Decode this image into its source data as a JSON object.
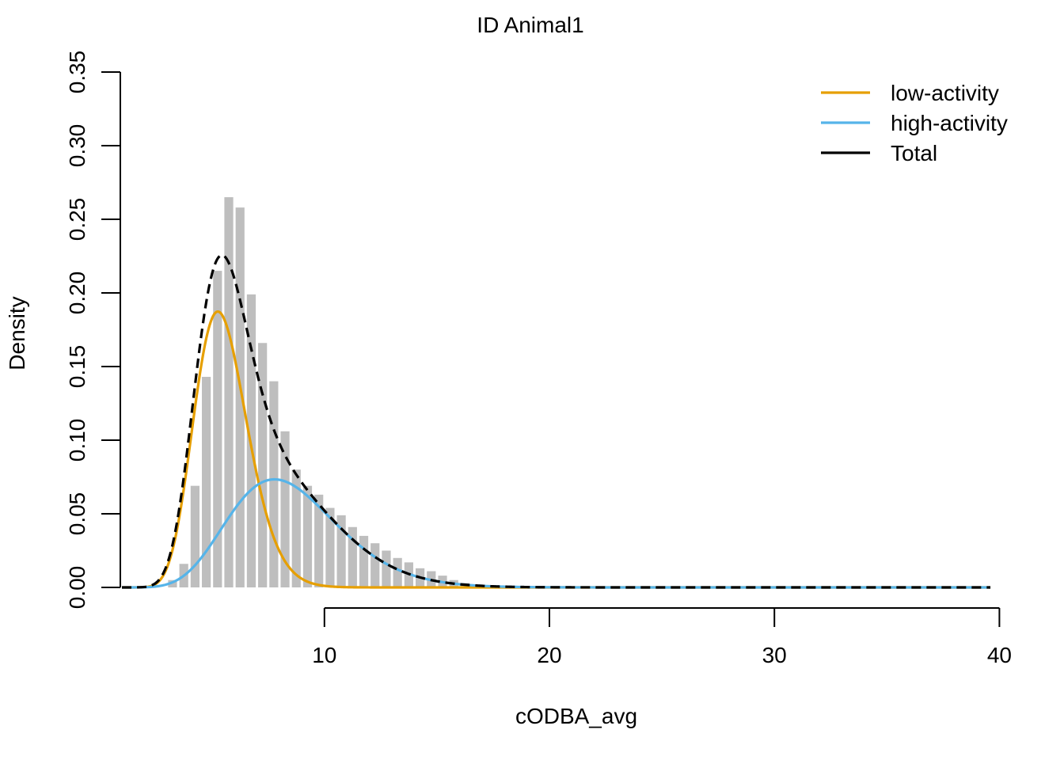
{
  "chart_data": {
    "type": "histogram",
    "title": "ID Animal1",
    "xlabel": "cODBA_avg",
    "ylabel": "Density",
    "xlim": [
      1,
      40
    ],
    "ylim": [
      0,
      0.35
    ],
    "x_ticks": [
      10,
      20,
      30,
      40
    ],
    "y_ticks": [
      0.0,
      0.05,
      0.1,
      0.15,
      0.2,
      0.25,
      0.3,
      0.35
    ],
    "y_tick_labels": [
      "0.00",
      "0.05",
      "0.10",
      "0.15",
      "0.20",
      "0.25",
      "0.30",
      "0.35"
    ],
    "histogram": {
      "bin_width": 0.5,
      "bin_start": 3.0,
      "color": "#bebebe",
      "densities": [
        0.005,
        0.016,
        0.069,
        0.143,
        0.215,
        0.265,
        0.258,
        0.199,
        0.166,
        0.14,
        0.106,
        0.08,
        0.069,
        0.063,
        0.054,
        0.049,
        0.041,
        0.035,
        0.03,
        0.025,
        0.02,
        0.017,
        0.013,
        0.011,
        0.008,
        0.005,
        0.003,
        0.002,
        0.001,
        0.001,
        0.001
      ]
    },
    "series": [
      {
        "name": "low-activity",
        "color": "#e69f00",
        "dash": "solid",
        "distribution": "gamma",
        "shape": 21,
        "rate": 3.8,
        "weight": 0.555
      },
      {
        "name": "high-activity",
        "color": "#56b4e9",
        "dash": "solid",
        "distribution": "gamma",
        "shape": 11.5,
        "rate": 1.35,
        "weight": 0.445
      },
      {
        "name": "Total",
        "color": "#000000",
        "dash": "dashed",
        "distribution": "sum"
      }
    ],
    "legend": {
      "position": "top-right",
      "entries": [
        "low-activity",
        "high-activity",
        "Total"
      ]
    }
  }
}
